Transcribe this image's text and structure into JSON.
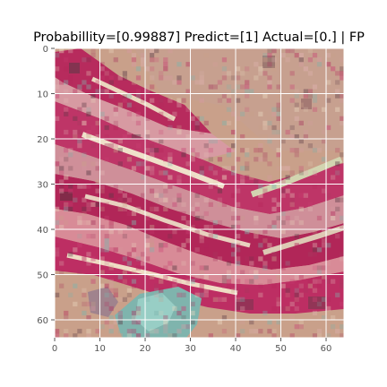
{
  "figure": {
    "title": "Probabillity=[0.99887] Predict=[1] Actual=[0.] | FP"
  },
  "axes": {
    "x_ticks": [
      "0",
      "10",
      "20",
      "30",
      "40",
      "50",
      "60"
    ],
    "y_ticks": [
      "0",
      "10",
      "20",
      "30",
      "40",
      "50",
      "60"
    ],
    "grid": true
  },
  "image": {
    "size": "64x64",
    "description": "pixelated histology tile with magenta/crimson stripes, pale pink and beige regions, cream streaks, and a teal/cyan patch at the bottom"
  },
  "colors": {
    "background": "#ffffff",
    "grid": "#ffffff",
    "tick_label": "#555555",
    "crimson": "#b5265a",
    "magenta": "#c93f73",
    "pink": "#d79aa2",
    "beige": "#c9a08a",
    "cream": "#ead7bf",
    "teal": "#7fb4ad",
    "dark": "#5a3a45"
  }
}
